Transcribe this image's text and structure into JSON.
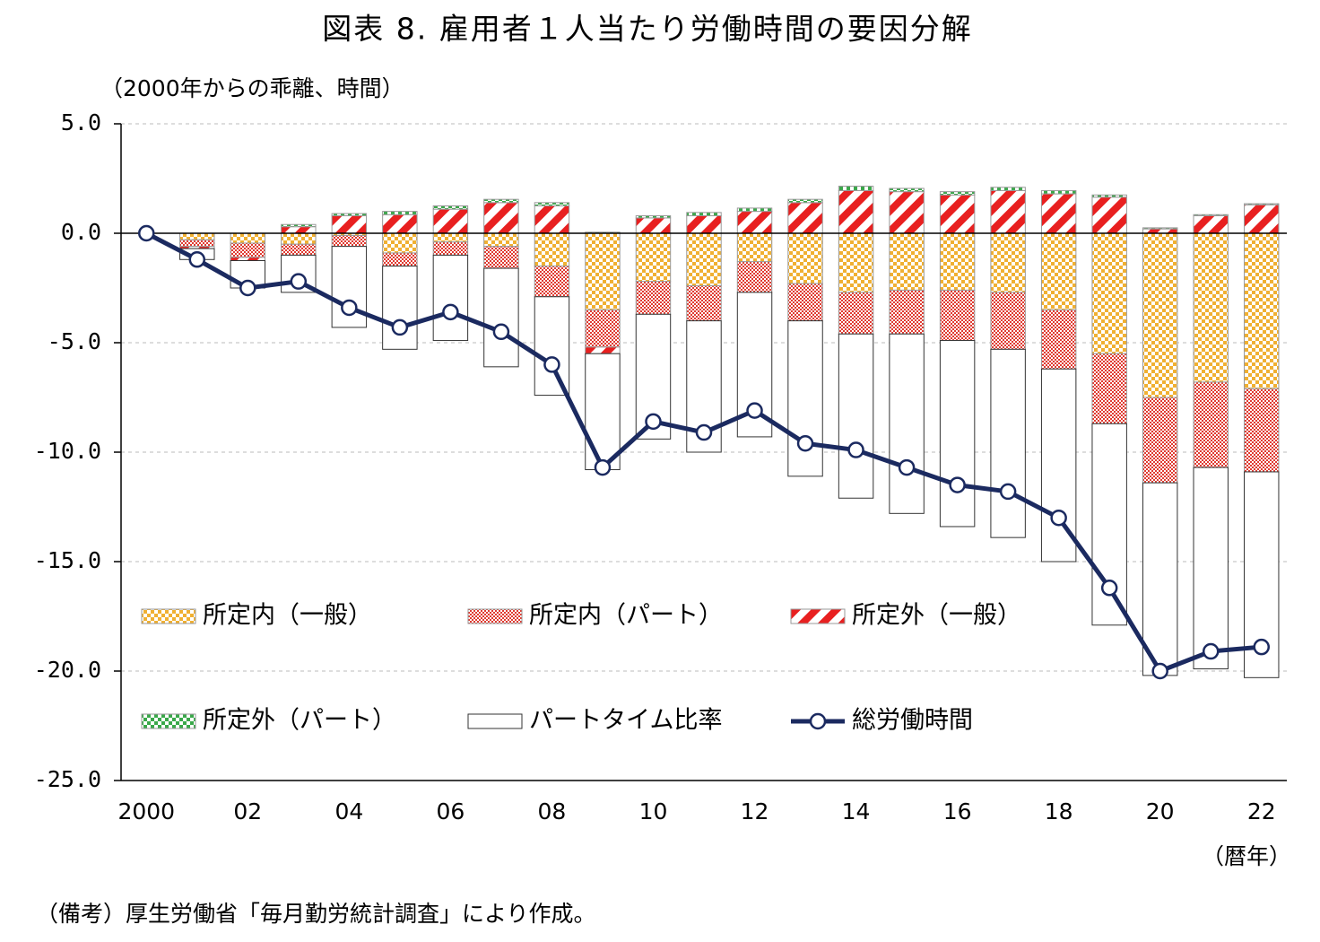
{
  "chart_data": {
    "type": "bar",
    "title": "図表 8.  雇用者１人当たり労働時間の要因分解",
    "y_label": "（2000年からの乖離、時間）",
    "x_label": "（暦年）",
    "note": "（備考）厚生労働省「毎月勤労統計調査」により作成。",
    "stacked": true,
    "grid": true,
    "categories": [
      "2000",
      null,
      "02",
      null,
      "04",
      null,
      "06",
      null,
      "08",
      null,
      "10",
      null,
      "12",
      null,
      "14",
      null,
      "16",
      null,
      "18",
      null,
      "20",
      null,
      "22"
    ],
    "ylim": [
      -25,
      5
    ],
    "yticks": [
      {
        "value": 5,
        "label": "5.0"
      },
      {
        "value": 0,
        "label": "0.0"
      },
      {
        "value": -5,
        "label": "-5.0"
      },
      {
        "value": -10,
        "label": "-10.0"
      },
      {
        "value": -15,
        "label": "-15.0"
      },
      {
        "value": -20,
        "label": "-20.0"
      },
      {
        "value": -25,
        "label": "-25.0"
      }
    ],
    "series": [
      {
        "name": "所定内（一般）",
        "color": "#f0b032",
        "pattern": "checker",
        "values": [
          0,
          -0.3,
          -0.45,
          -0.5,
          -0.1,
          -0.9,
          -0.4,
          -0.6,
          -1.5,
          -3.5,
          -2.2,
          -2.4,
          -1.3,
          -2.3,
          -2.7,
          -2.6,
          -2.6,
          -2.7,
          -3.5,
          -5.5,
          -7.5,
          -6.8,
          -7.1
        ]
      },
      {
        "name": "所定内（パート）",
        "color": "#e03a30",
        "pattern": "dots",
        "values": [
          0,
          -0.3,
          -0.65,
          -0.5,
          -0.5,
          -0.6,
          -0.6,
          -1.0,
          -1.4,
          -1.7,
          -1.5,
          -1.6,
          -1.4,
          -1.7,
          -1.9,
          -2.0,
          -2.3,
          -2.6,
          -2.7,
          -3.2,
          -3.9,
          -3.9,
          -3.8
        ]
      },
      {
        "name": "所定外（一般）",
        "color": "#e82020",
        "pattern": "stripes",
        "values": [
          0,
          -0.1,
          -0.15,
          0.3,
          0.8,
          0.85,
          1.1,
          1.4,
          1.25,
          -0.3,
          0.7,
          0.8,
          1.0,
          1.4,
          1.95,
          1.9,
          1.75,
          1.95,
          1.8,
          1.65,
          0.2,
          0.8,
          1.3
        ]
      },
      {
        "name": "所定外（パート）",
        "color": "#3aa84a",
        "pattern": "checker",
        "values": [
          0,
          0,
          0,
          0.1,
          0.1,
          0.15,
          0.15,
          0.15,
          0.15,
          0.05,
          0.1,
          0.15,
          0.15,
          0.15,
          0.2,
          0.15,
          0.15,
          0.15,
          0.15,
          0.1,
          0.05,
          0.05,
          0.05
        ]
      },
      {
        "name": "パートタイム比率",
        "color": "#ffffff",
        "pattern": "none",
        "values": [
          0,
          -0.5,
          -1.25,
          -1.7,
          -3.7,
          -3.8,
          -3.9,
          -4.5,
          -4.5,
          -5.3,
          -5.7,
          -6.0,
          -6.6,
          -7.1,
          -7.5,
          -8.2,
          -8.5,
          -8.6,
          -8.8,
          -9.2,
          -8.8,
          -9.2,
          -9.4
        ]
      },
      {
        "name": "総労働時間",
        "color": "#1b2a60",
        "type": "line",
        "values": [
          0,
          -1.2,
          -2.5,
          -2.2,
          -3.4,
          -4.3,
          -3.6,
          -4.5,
          -6.0,
          -10.7,
          -8.6,
          -9.1,
          -8.1,
          -9.6,
          -9.9,
          -10.7,
          -11.5,
          -11.8,
          -13.0,
          -16.2,
          -20.0,
          -19.1,
          -18.9
        ]
      }
    ]
  }
}
